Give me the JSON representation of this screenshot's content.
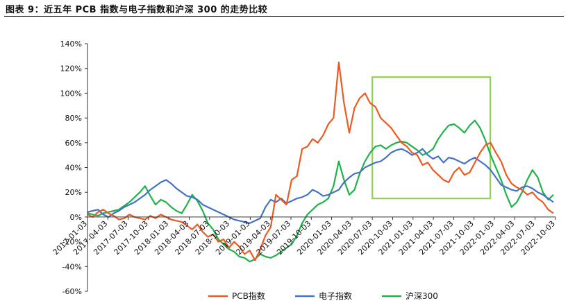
{
  "figure": {
    "title": "图表 9：近五年 PCB 指数与电子指数和沪深 300 的走势比较"
  },
  "chart_data": {
    "type": "line",
    "title": "",
    "xlabel": "",
    "ylabel": "",
    "ylim": [
      -60,
      140
    ],
    "y_ticks": [
      "-60%",
      "-40%",
      "-20%",
      "0%",
      "20%",
      "40%",
      "60%",
      "80%",
      "100%",
      "120%",
      "140%"
    ],
    "x_tick_labels": [
      "2017-01-03",
      "2017-04-03",
      "2017-07-03",
      "2017-10-03",
      "2018-01-03",
      "2018-04-03",
      "2018-07-03",
      "2018-10-03",
      "2019-01-03",
      "2019-04-03",
      "2019-07-03",
      "2019-10-03",
      "2020-01-03",
      "2020-04-03",
      "2020-07-03",
      "2020-10-03",
      "2021-01-03",
      "2021-04-03",
      "2021-07-03",
      "2021-10-03",
      "2022-01-03",
      "2022-04-03",
      "2022-07-03",
      "2022-10-03"
    ],
    "series_colors": [
      "#ec5a22",
      "#4472c4",
      "#1fb24a"
    ],
    "highlight_box": {
      "x_from": "2020-07-03",
      "x_to": "2021-12-15",
      "y_from": 15,
      "y_to": 113,
      "color": "#92d050"
    },
    "series": [
      {
        "values": [
          2,
          0,
          4,
          6,
          3,
          1,
          -2,
          -1,
          2,
          0,
          -1,
          -2,
          1,
          -1,
          2,
          0,
          -2,
          -3,
          -4,
          -7,
          -10,
          -6,
          -12,
          -16,
          -14,
          -20,
          -18,
          -25,
          -20,
          -24,
          -30,
          -27,
          -35,
          -26,
          -15,
          -8,
          18,
          14,
          10,
          30,
          33,
          55,
          57,
          63,
          60,
          66,
          75,
          80,
          125,
          92,
          68,
          88,
          96,
          100,
          92,
          89,
          80,
          76,
          72,
          66,
          60,
          57,
          52,
          50,
          42,
          44,
          38,
          34,
          30,
          28,
          36,
          40,
          34,
          36,
          44,
          52,
          58,
          60,
          52,
          45,
          34,
          27,
          24,
          22,
          18,
          20,
          15,
          12,
          6,
          3
        ]
      },
      {
        "values": [
          4,
          5,
          6,
          2,
          0,
          3,
          5,
          8,
          10,
          12,
          15,
          18,
          22,
          25,
          28,
          30,
          27,
          23,
          20,
          17,
          16,
          14,
          10,
          8,
          6,
          4,
          2,
          0,
          -2,
          -3,
          -4,
          -5,
          -3,
          -1,
          8,
          14,
          12,
          15,
          11,
          13,
          15,
          16,
          18,
          22,
          20,
          17,
          18,
          20,
          22,
          28,
          32,
          35,
          36,
          40,
          42,
          44,
          45,
          48,
          52,
          54,
          55,
          53,
          50,
          52,
          55,
          50,
          47,
          49,
          44,
          48,
          47,
          45,
          43,
          46,
          48,
          45,
          42,
          38,
          32,
          26,
          24,
          22,
          21,
          24,
          25,
          23,
          20,
          18,
          15,
          12
        ]
      },
      {
        "values": [
          3,
          2,
          1,
          3,
          4,
          5,
          6,
          9,
          12,
          16,
          20,
          25,
          17,
          10,
          14,
          12,
          8,
          5,
          3,
          10,
          18,
          13,
          5,
          -5,
          -10,
          -18,
          -22,
          -26,
          -28,
          -32,
          -33,
          -36,
          -34,
          -30,
          -32,
          -33,
          -31,
          -28,
          -25,
          -22,
          -15,
          -5,
          2,
          6,
          10,
          12,
          15,
          25,
          45,
          30,
          18,
          22,
          35,
          45,
          52,
          57,
          58,
          55,
          58,
          60,
          61,
          60,
          57,
          54,
          50,
          52,
          55,
          63,
          69,
          74,
          75,
          72,
          68,
          74,
          78,
          72,
          62,
          50,
          40,
          30,
          18,
          8,
          12,
          20,
          30,
          38,
          32,
          20,
          14,
          18
        ]
      }
    ],
    "legend": {
      "entries": [
        "PCB指数",
        "电子指数",
        "沪深300"
      ],
      "placement": "bottom"
    }
  }
}
